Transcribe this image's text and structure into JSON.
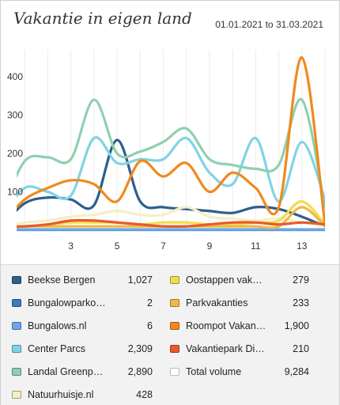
{
  "header": {
    "title": "Vakantie in eigen land",
    "date_range": "01.01.2021 to 31.03.2021"
  },
  "chart_data": {
    "type": "line",
    "x": [
      0,
      1,
      2,
      3,
      4,
      5,
      6,
      7,
      8,
      9,
      10,
      11,
      12,
      13,
      14
    ],
    "x_ticks": [
      "3",
      "5",
      "7",
      "9",
      "11",
      "13"
    ],
    "x_tick_values": [
      3,
      5,
      7,
      9,
      11,
      13
    ],
    "y_ticks": [
      "100",
      "200",
      "300",
      "400"
    ],
    "y_tick_values": [
      100,
      200,
      300,
      400
    ],
    "xlim": [
      1,
      14
    ],
    "ylim": [
      0,
      470
    ],
    "grid": "vertical",
    "series": [
      {
        "name": "Beekse Bergen",
        "color": "#2e5f8a",
        "values": [
          10,
          70,
          85,
          80,
          65,
          235,
          75,
          60,
          55,
          50,
          45,
          60,
          55,
          35,
          10
        ]
      },
      {
        "name": "Bungalowparko…",
        "color": "#3b7bbf",
        "values": [
          0,
          0,
          0,
          0,
          0,
          0,
          0,
          0,
          0,
          0,
          0,
          0,
          0,
          0,
          0
        ]
      },
      {
        "name": "Bungalows.nl",
        "color": "#6aa9ea",
        "values": [
          2,
          2,
          2,
          2,
          2,
          2,
          2,
          2,
          2,
          2,
          2,
          2,
          2,
          2,
          2
        ]
      },
      {
        "name": "Center Parcs",
        "color": "#7fd4e4",
        "values": [
          30,
          110,
          100,
          90,
          240,
          175,
          185,
          185,
          240,
          150,
          120,
          240,
          75,
          230,
          80
        ]
      },
      {
        "name": "Landal Greenp…",
        "color": "#8fd0b0",
        "values": [
          50,
          180,
          190,
          185,
          340,
          200,
          205,
          230,
          265,
          185,
          170,
          160,
          170,
          340,
          60
        ]
      },
      {
        "name": "Natuurhuisje.nl",
        "color": "#f5efc4",
        "values": [
          10,
          20,
          25,
          35,
          40,
          50,
          40,
          40,
          60,
          35,
          30,
          25,
          30,
          20,
          10
        ]
      },
      {
        "name": "Oostappen vak…",
        "color": "#f3dc4e",
        "values": [
          10,
          10,
          15,
          20,
          20,
          20,
          15,
          20,
          20,
          15,
          15,
          20,
          25,
          75,
          15
        ]
      },
      {
        "name": "Parkvakanties",
        "color": "#f2b847",
        "values": [
          5,
          10,
          10,
          10,
          10,
          10,
          10,
          10,
          10,
          10,
          10,
          10,
          10,
          60,
          10
        ]
      },
      {
        "name": "Roompot Vakan…",
        "color": "#f0891f",
        "values": [
          15,
          80,
          110,
          130,
          120,
          75,
          180,
          140,
          175,
          100,
          150,
          110,
          60,
          450,
          15
        ]
      },
      {
        "name": "Vakantiepark Di…",
        "color": "#e85a2a",
        "values": [
          10,
          10,
          15,
          25,
          25,
          20,
          15,
          10,
          10,
          15,
          20,
          20,
          15,
          20,
          15
        ]
      }
    ]
  },
  "legend": {
    "left": [
      {
        "name": "Beekse Bergen",
        "value": "1,027",
        "color": "#2e5f8a"
      },
      {
        "name": "Bungalowparko…",
        "value": "2",
        "color": "#3b7bbf"
      },
      {
        "name": "Bungalows.nl",
        "value": "6",
        "color": "#6aa9ea"
      },
      {
        "name": "Center Parcs",
        "value": "2,309",
        "color": "#7fd4e4"
      },
      {
        "name": "Landal Greenp…",
        "value": "2,890",
        "color": "#8fd0b0"
      },
      {
        "name": "Natuurhuisje.nl",
        "value": "428",
        "color": "#f5efc4"
      }
    ],
    "right": [
      {
        "name": "Oostappen vak…",
        "value": "279",
        "color": "#f3dc4e"
      },
      {
        "name": "Parkvakanties",
        "value": "233",
        "color": "#f2b847"
      },
      {
        "name": "Roompot Vakan…",
        "value": "1,900",
        "color": "#f0891f"
      },
      {
        "name": "Vakantiepark Di…",
        "value": "210",
        "color": "#e85a2a"
      },
      {
        "name": "Total volume",
        "value": "9,284",
        "color": "#ffffff"
      }
    ]
  }
}
